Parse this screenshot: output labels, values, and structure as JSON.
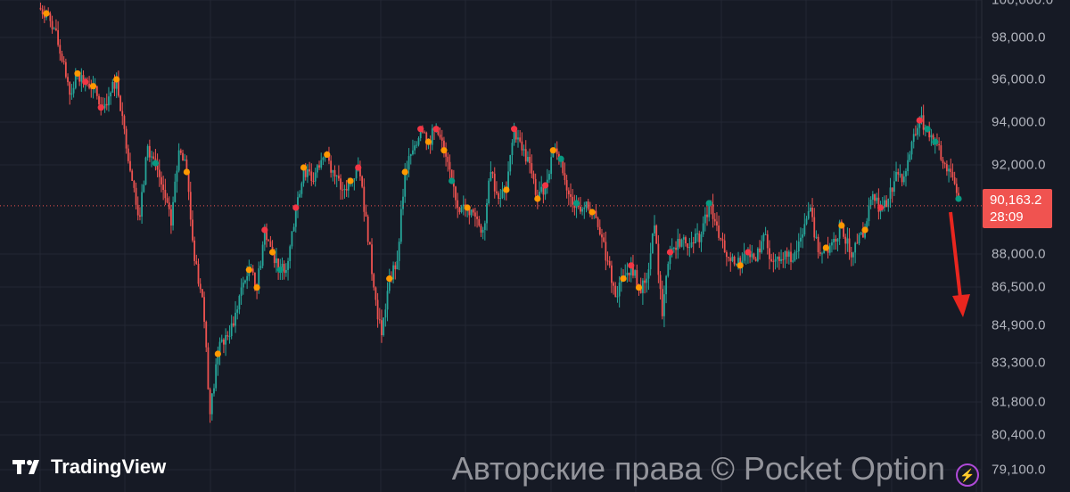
{
  "chart_data": {
    "type": "candlestick",
    "title": "",
    "xlabel": "",
    "ylabel": "",
    "ylim": [
      79100,
      100000
    ],
    "grid": true,
    "y_ticks": [
      "100,000.0",
      "98,000.0",
      "96,000.0",
      "94,000.0",
      "92,000.0",
      "88,000.0",
      "86,500.0",
      "84,900.0",
      "83,300.0",
      "81,800.0",
      "80,400.0",
      "79,100.0"
    ],
    "y_tick_values": [
      100000,
      98000,
      96000,
      94000,
      92000,
      88000,
      86500,
      84900,
      83300,
      81800,
      80400,
      79100
    ],
    "closes": [
      99280,
      98480,
      96880,
      95280,
      96280,
      95880,
      95680,
      94680,
      95200,
      96000,
      93680,
      91280,
      89680,
      92880,
      92080,
      90880,
      89280,
      92680,
      91680,
      87680,
      86080,
      81280,
      83680,
      84480,
      84880,
      86480,
      87280,
      86480,
      89080,
      88080,
      87280,
      87680,
      90080,
      91880,
      91280,
      91880,
      92480,
      91480,
      90880,
      91280,
      91880,
      89680,
      86480,
      84480,
      86880,
      87680,
      91680,
      92680,
      93680,
      93080,
      93680,
      92680,
      91280,
      89880,
      90080,
      89680,
      89080,
      91680,
      90480,
      90880,
      93680,
      92680,
      92080,
      90480,
      91080,
      92680,
      92280,
      90680,
      90280,
      90080,
      89880,
      88880,
      87680,
      86080,
      86880,
      87480,
      86480,
      86880,
      89280,
      85280,
      88080,
      88680,
      88480,
      88480,
      88880,
      90280,
      89280,
      88080,
      87880,
      87480,
      88080,
      87680,
      88880,
      87680,
      87680,
      87880,
      88080,
      88880,
      90080,
      88080,
      88280,
      88680,
      89280,
      88080,
      88480,
      89080,
      90680,
      90080,
      90480,
      91680,
      91480,
      93080,
      94080,
      93680,
      93080,
      92080,
      91680,
      90480
    ],
    "markers": [
      {
        "index": 0,
        "kind": "orange"
      },
      {
        "index": 4,
        "kind": "orange"
      },
      {
        "index": 6,
        "kind": "orange"
      },
      {
        "index": 9,
        "kind": "orange"
      },
      {
        "index": 18,
        "kind": "orange"
      },
      {
        "index": 22,
        "kind": "orange"
      },
      {
        "index": 26,
        "kind": "orange"
      },
      {
        "index": 27,
        "kind": "orange"
      },
      {
        "index": 29,
        "kind": "orange"
      },
      {
        "index": 33,
        "kind": "orange"
      },
      {
        "index": 36,
        "kind": "orange"
      },
      {
        "index": 39,
        "kind": "orange"
      },
      {
        "index": 44,
        "kind": "orange"
      },
      {
        "index": 46,
        "kind": "orange"
      },
      {
        "index": 49,
        "kind": "orange"
      },
      {
        "index": 51,
        "kind": "orange"
      },
      {
        "index": 54,
        "kind": "orange"
      },
      {
        "index": 59,
        "kind": "orange"
      },
      {
        "index": 63,
        "kind": "orange"
      },
      {
        "index": 65,
        "kind": "orange"
      },
      {
        "index": 70,
        "kind": "orange"
      },
      {
        "index": 74,
        "kind": "orange"
      },
      {
        "index": 76,
        "kind": "orange"
      },
      {
        "index": 89,
        "kind": "orange"
      },
      {
        "index": 100,
        "kind": "orange"
      },
      {
        "index": 102,
        "kind": "orange"
      },
      {
        "index": 105,
        "kind": "orange"
      },
      {
        "index": 5,
        "kind": "red"
      },
      {
        "index": 7,
        "kind": "red"
      },
      {
        "index": 28,
        "kind": "red"
      },
      {
        "index": 32,
        "kind": "red"
      },
      {
        "index": 40,
        "kind": "red"
      },
      {
        "index": 48,
        "kind": "red"
      },
      {
        "index": 50,
        "kind": "red"
      },
      {
        "index": 60,
        "kind": "red"
      },
      {
        "index": 64,
        "kind": "red"
      },
      {
        "index": 75,
        "kind": "red"
      },
      {
        "index": 80,
        "kind": "red"
      },
      {
        "index": 90,
        "kind": "red"
      },
      {
        "index": 107,
        "kind": "red"
      },
      {
        "index": 112,
        "kind": "red"
      },
      {
        "index": 14,
        "kind": "teal"
      },
      {
        "index": 30,
        "kind": "teal"
      },
      {
        "index": 52,
        "kind": "teal"
      },
      {
        "index": 66,
        "kind": "teal"
      },
      {
        "index": 68,
        "kind": "teal"
      },
      {
        "index": 85,
        "kind": "teal"
      },
      {
        "index": 113,
        "kind": "teal"
      },
      {
        "index": 114,
        "kind": "teal"
      },
      {
        "index": 117,
        "kind": "teal"
      }
    ],
    "current_price": 90163.2,
    "current_price_label": "90,163.2",
    "countdown": "28:09",
    "annotation": "red-down-arrow"
  },
  "colors": {
    "background": "#161a25",
    "grid": "#232733",
    "up": "#26a69a",
    "down": "#ef5350",
    "orange": "#ff9800",
    "red": "#f23645",
    "teal": "#089981",
    "price_line": "#f05350",
    "arrow": "#e8261f"
  },
  "branding": {
    "logo_text": "TradingView",
    "watermark": "Авторские права © Pocket Option"
  }
}
